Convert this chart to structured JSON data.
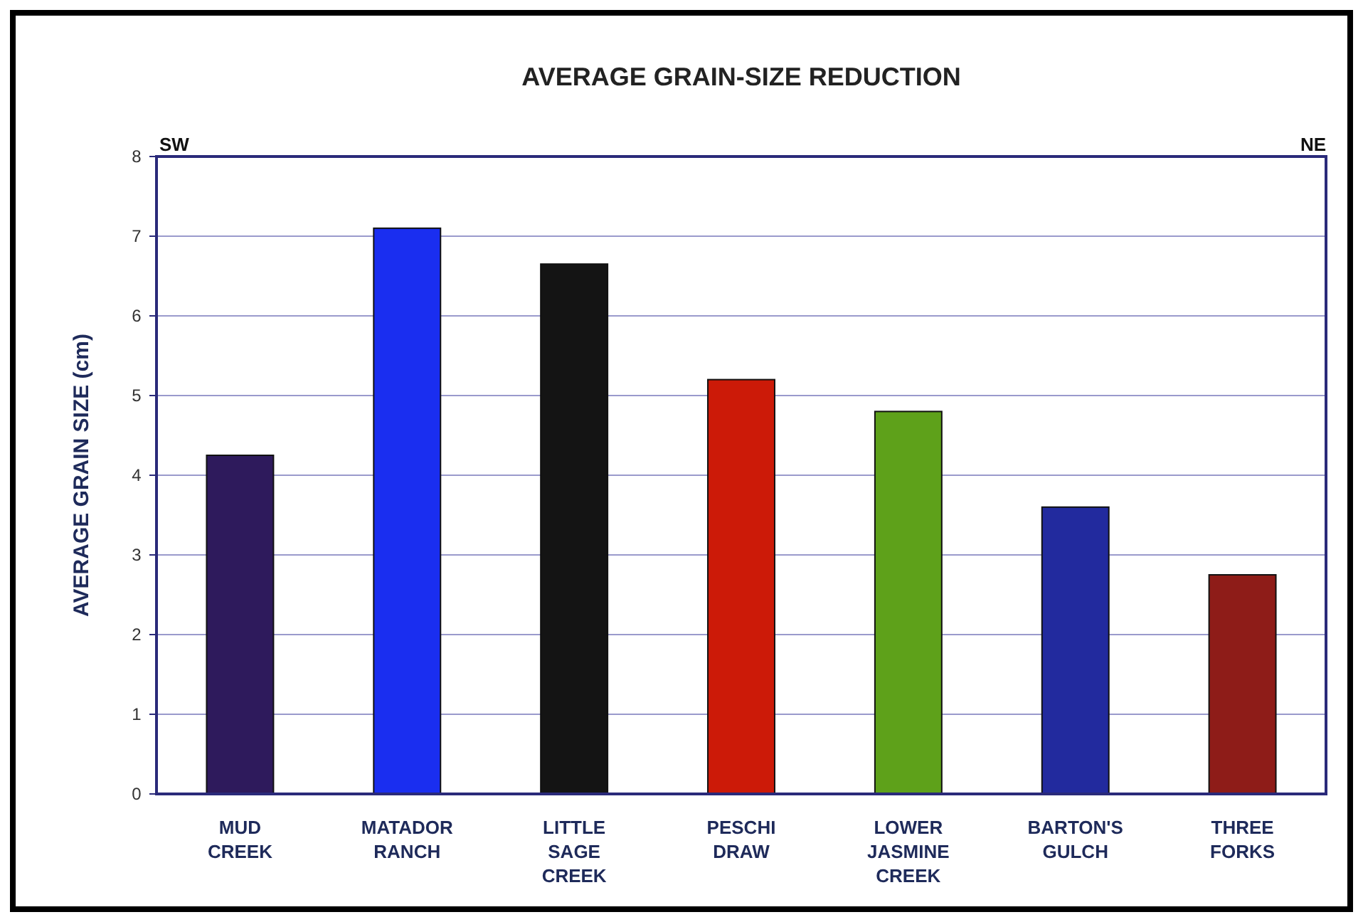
{
  "chart_data": {
    "type": "bar",
    "title": "AVERAGE GRAIN-SIZE REDUCTION",
    "ylabel": "AVERAGE GRAIN SIZE (cm)",
    "categories": [
      "MUD CREEK",
      "MATADOR RANCH",
      "LITTLE SAGE CREEK",
      "PESCHI DRAW",
      "LOWER JASMINE CREEK",
      "BARTON'S GULCH",
      "THREE FORKS"
    ],
    "values": [
      4.25,
      7.1,
      6.65,
      5.2,
      4.8,
      3.6,
      2.75
    ],
    "colors": [
      "#2e1a5c",
      "#1a2ef0",
      "#141414",
      "#cc1a08",
      "#5ea11a",
      "#222a9e",
      "#8e1c18"
    ],
    "ylim": [
      0,
      8
    ],
    "yticks": [
      0,
      1,
      2,
      3,
      4,
      5,
      6,
      7,
      8
    ],
    "grid": "y",
    "annotations": [
      "SW",
      "NE"
    ]
  }
}
